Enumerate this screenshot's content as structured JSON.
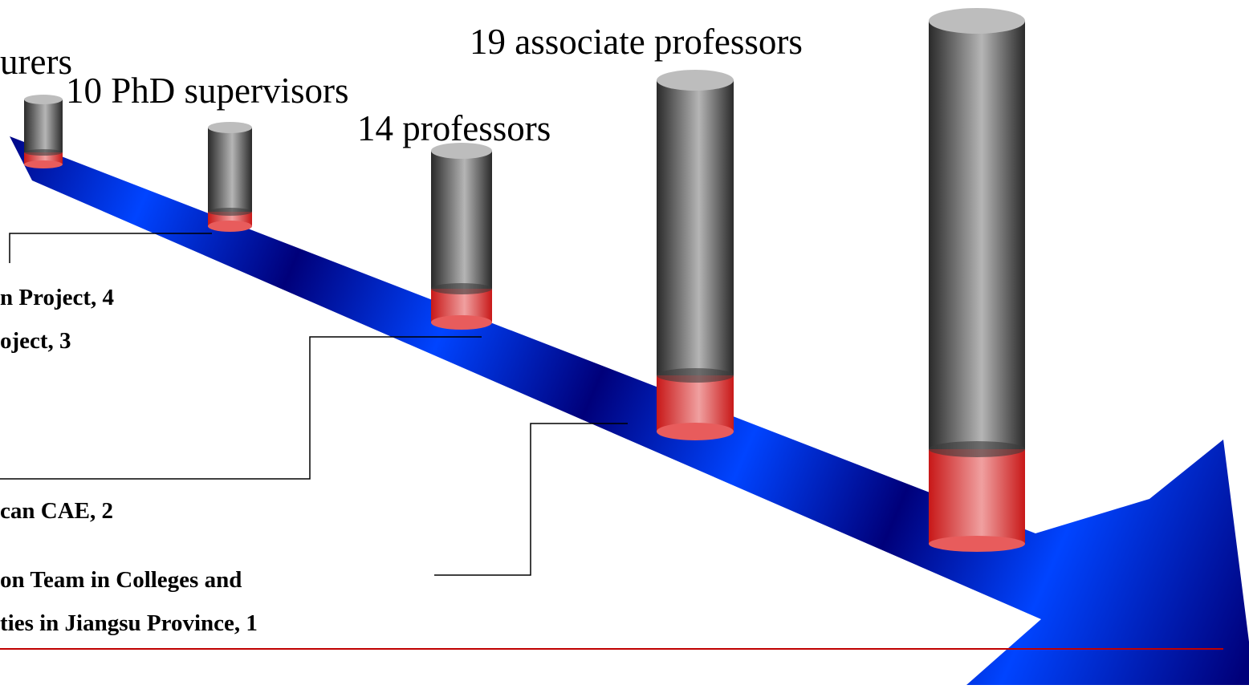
{
  "diagram": {
    "colors": {
      "arrow_dark": "#00007a",
      "arrow_bright": "#0044ff",
      "cylinder_grey_dark": "#2a2a2a",
      "cylinder_grey_light": "#b5b5b5",
      "cylinder_red": "#e05050",
      "cylinder_red_light": "#f0a0a0",
      "divider": "#c00000"
    },
    "cylinder_labels": {
      "lecturers": "urers",
      "phd": "10 PhD supervisors",
      "professors": "14 professors",
      "associate": "19 associate professors"
    },
    "callouts": {
      "c1_line1": "n Project, 4",
      "c1_line2": "oject, 3",
      "c2": "can CAE, 2",
      "c3_line1": "on Team in Colleges and",
      "c3_line2": "ties in Jiangsu Province, 1"
    }
  }
}
